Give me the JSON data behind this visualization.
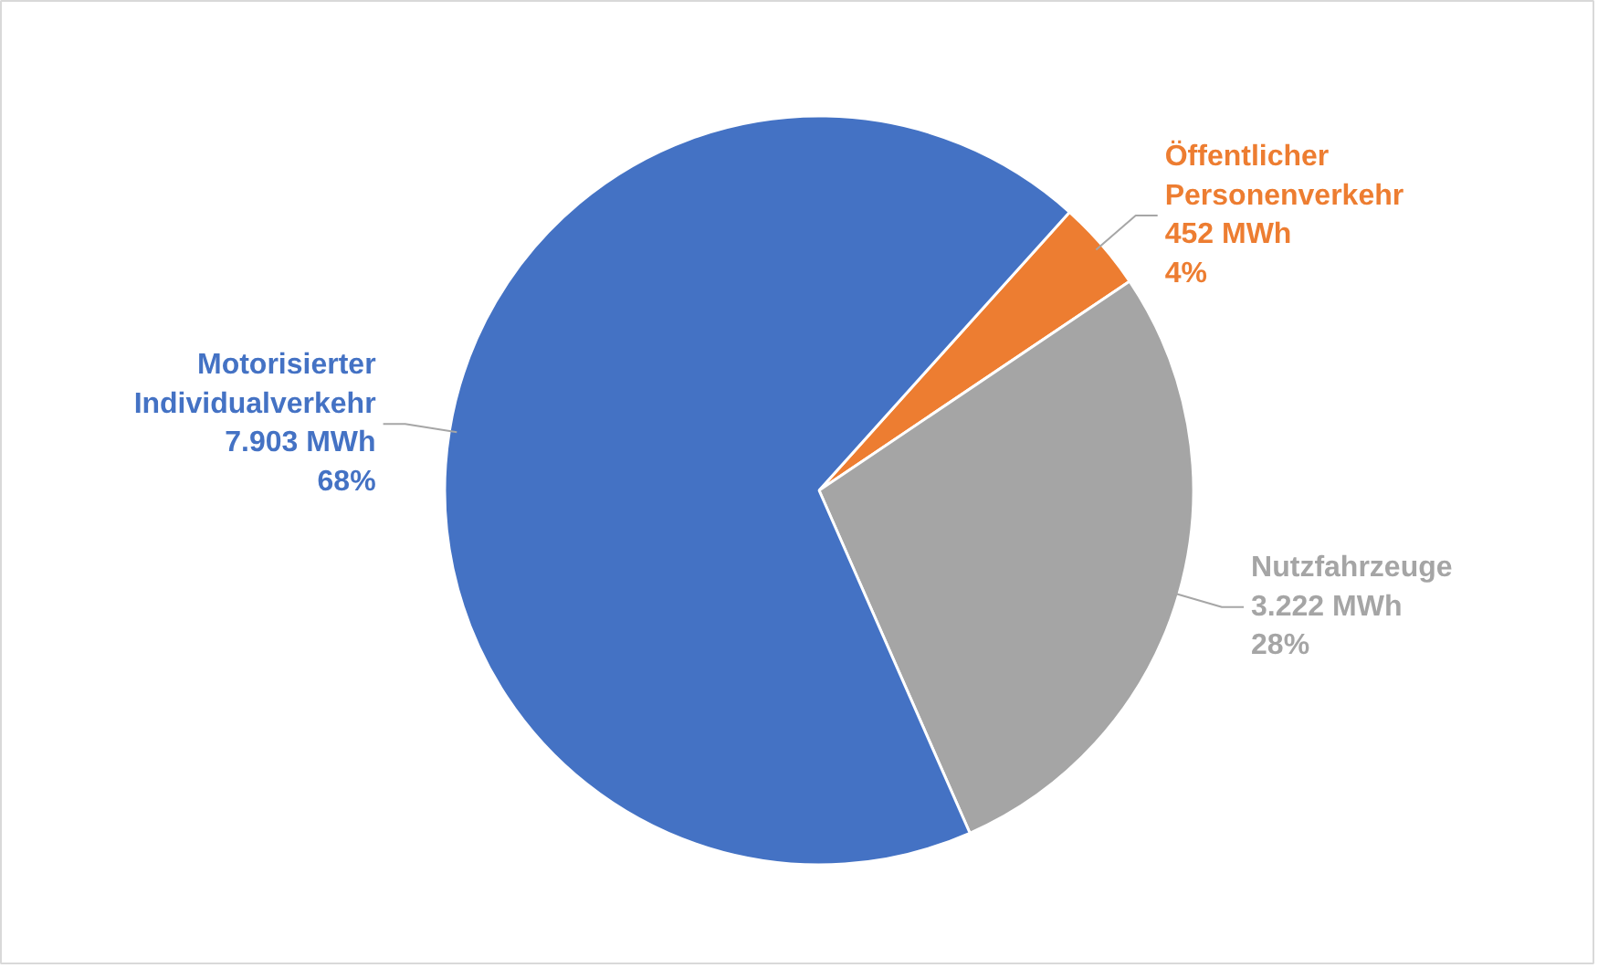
{
  "chart_data": {
    "type": "pie",
    "categories": [
      "Öffentlicher Personenverkehr",
      "Nutzfahrzeuge",
      "Motorisierter Individualverkehr"
    ],
    "values": [
      452,
      3222,
      7903
    ],
    "colors": [
      "#ed7d31",
      "#a5a5a5",
      "#4472c4"
    ],
    "value_labels": [
      "452 MWh\n4%",
      "3.222 MWh\n28%",
      "7.903 MWh\n68%"
    ],
    "legend": false
  }
}
